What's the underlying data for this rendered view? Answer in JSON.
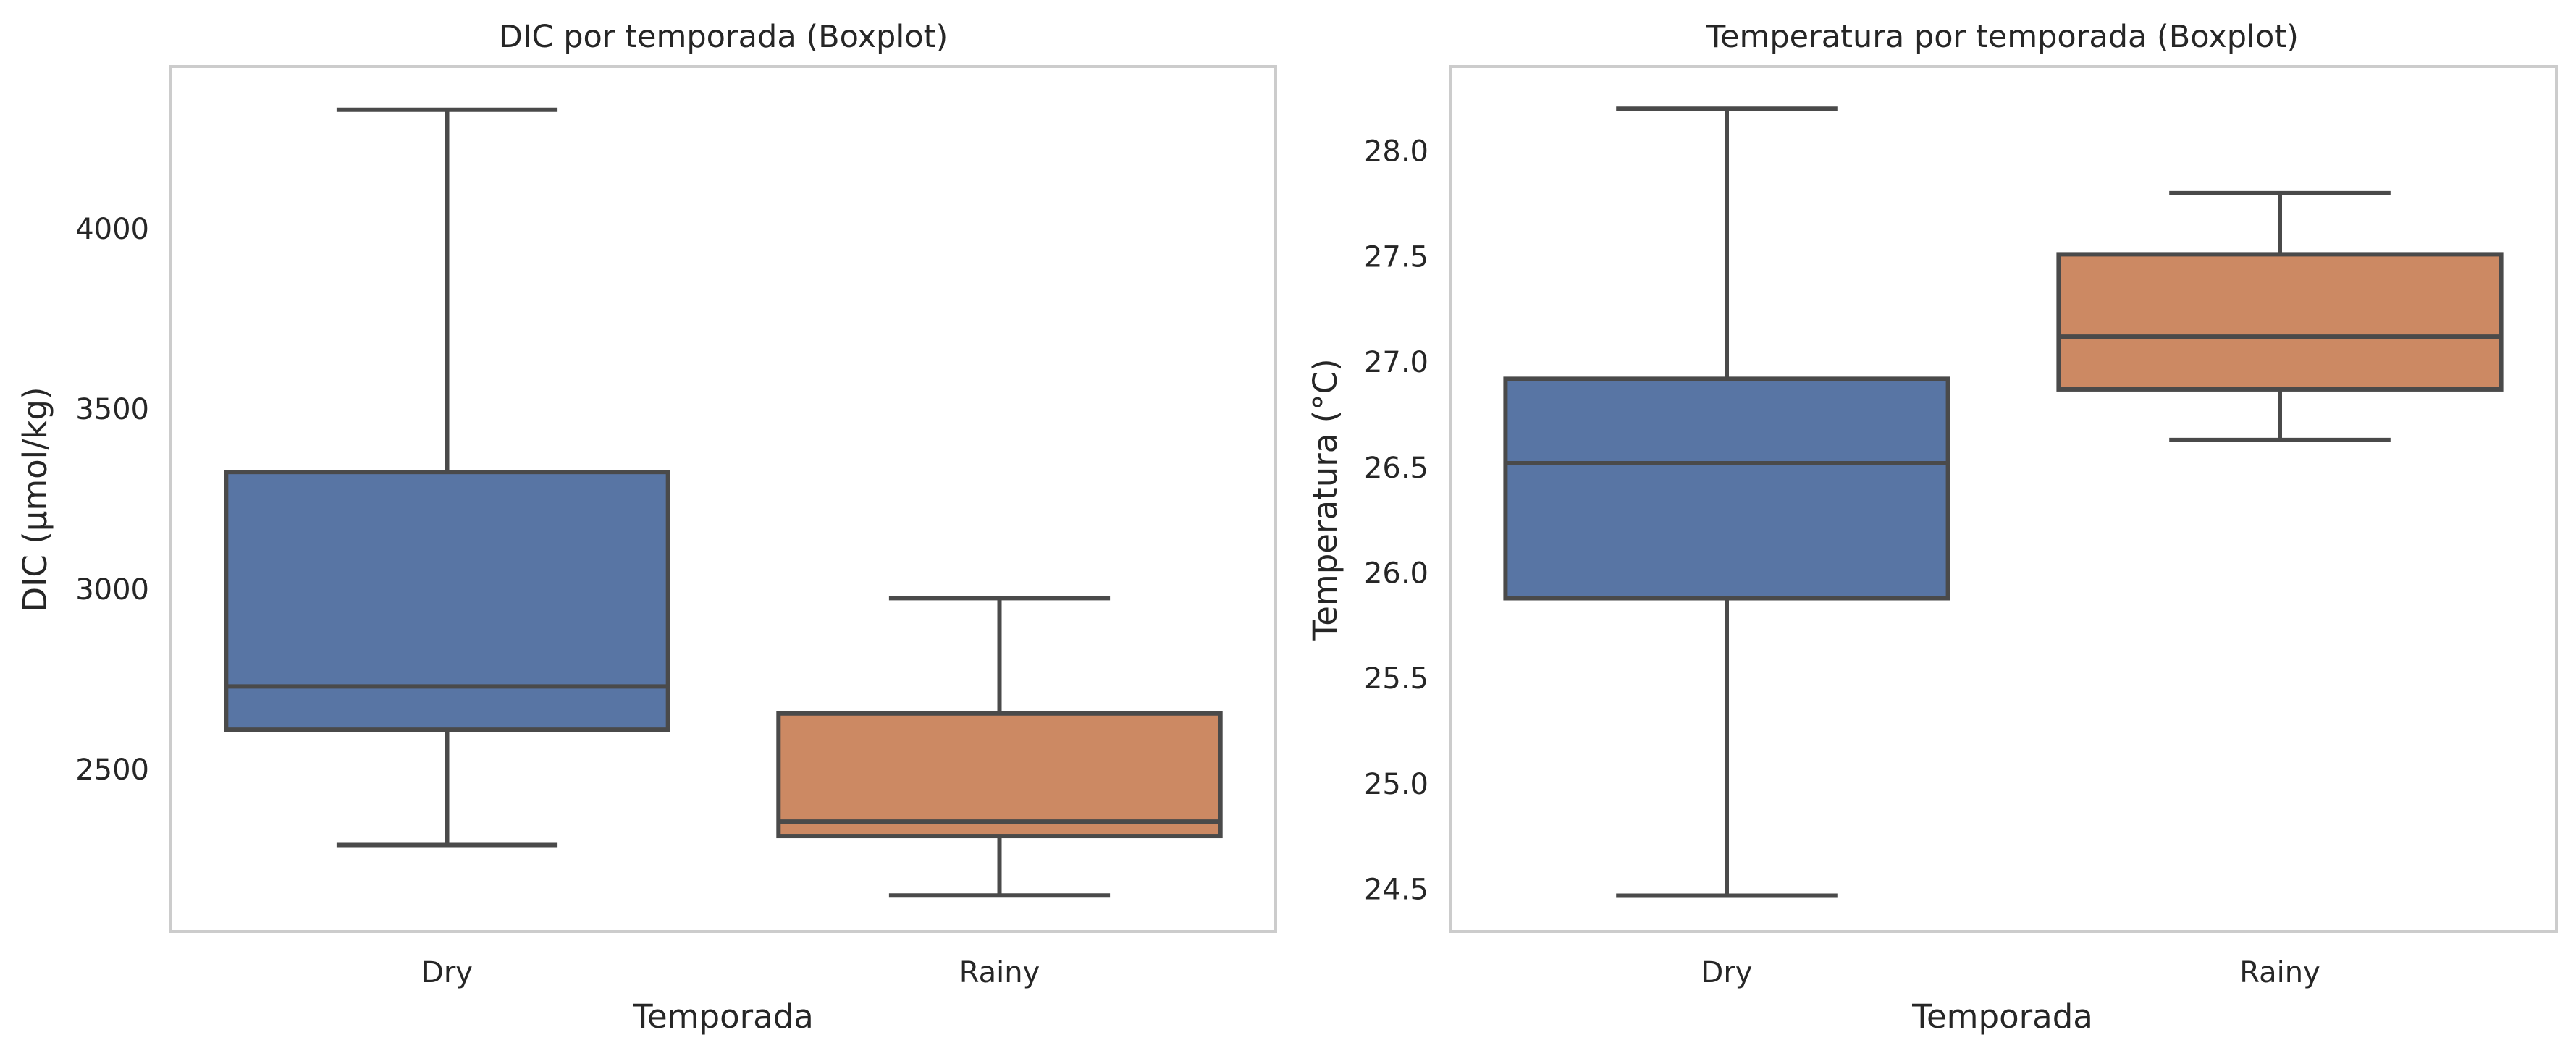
{
  "chart_data": [
    {
      "type": "box",
      "title": "DIC por temporada (Boxplot)",
      "xlabel": "Temporada",
      "ylabel": "DIC (µmol/kg)",
      "categories": [
        "Dry",
        "Rainy"
      ],
      "ylim": [
        2050,
        4450
      ],
      "yticks": [
        2500,
        3000,
        3500,
        4000
      ],
      "ytick_labels": [
        "2500",
        "3000",
        "3500",
        "4000"
      ],
      "grid": false,
      "boxes": [
        {
          "category": "Dry",
          "whisker_low": 2290,
          "q1": 2610,
          "median": 2730,
          "q3": 3325,
          "whisker_high": 4330,
          "color": "#5875a4"
        },
        {
          "category": "Rainy",
          "whisker_low": 2150,
          "q1": 2315,
          "median": 2355,
          "q3": 2655,
          "whisker_high": 2975,
          "color": "#cc8963"
        }
      ]
    },
    {
      "type": "box",
      "title": "Temperatura por temporada (Boxplot)",
      "xlabel": "Temporada",
      "ylabel": "Temperatura (°C)",
      "categories": [
        "Dry",
        "Rainy"
      ],
      "ylim": [
        24.3,
        28.4
      ],
      "yticks": [
        24.5,
        25.0,
        25.5,
        26.0,
        26.5,
        27.0,
        27.5,
        28.0
      ],
      "ytick_labels": [
        "24.5",
        "25.0",
        "25.5",
        "26.0",
        "26.5",
        "27.0",
        "27.5",
        "28.0"
      ],
      "grid": false,
      "boxes": [
        {
          "category": "Dry",
          "whisker_low": 24.47,
          "q1": 25.88,
          "median": 26.52,
          "q3": 26.92,
          "whisker_high": 28.2,
          "color": "#5875a4"
        },
        {
          "category": "Rainy",
          "whisker_low": 26.63,
          "q1": 26.87,
          "median": 27.12,
          "q3": 27.51,
          "whisker_high": 27.8,
          "color": "#cc8963"
        }
      ]
    }
  ]
}
